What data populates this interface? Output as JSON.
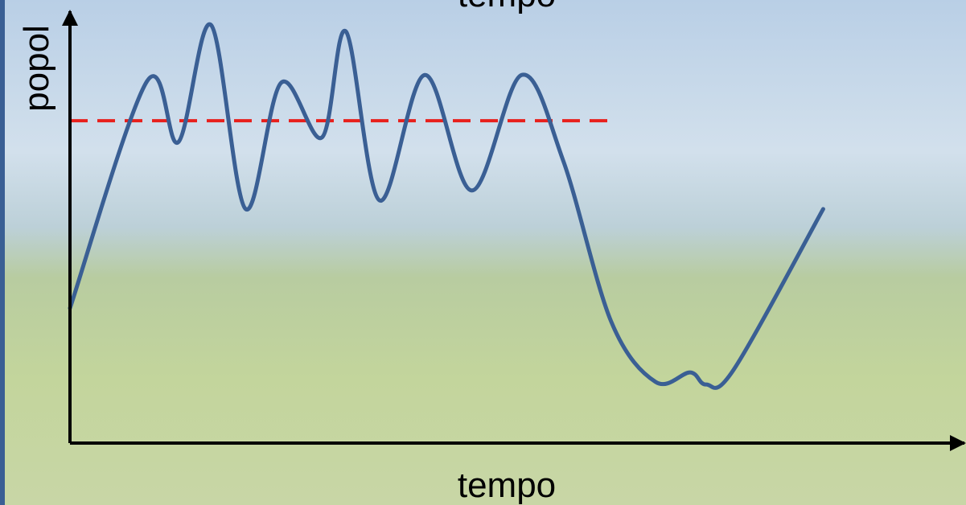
{
  "chart_data": {
    "type": "line",
    "title": "tempo",
    "x_label": "tempo",
    "y_label": "popol",
    "x": [
      0,
      8.7,
      12.2,
      15.9,
      19.8,
      23.8,
      28.4,
      31.1,
      34.9,
      40.0,
      45.3,
      50.9,
      55.6,
      61.0,
      66.0,
      69.9,
      71.7,
      74.8,
      84.9
    ],
    "values": [
      31.3,
      84.0,
      69.8,
      97.0,
      54.3,
      83.6,
      70.9,
      95.5,
      56.3,
      85.4,
      58.6,
      85.4,
      65.5,
      28.2,
      14.2,
      16.4,
      13.6,
      17.0,
      54.3
    ],
    "color": "#3a5f94",
    "reference_line": {
      "value": 74.8,
      "x_end": 61.0,
      "color": "#e8201c"
    },
    "xlim": [
      0,
      100
    ],
    "ylim": [
      0,
      100
    ]
  }
}
